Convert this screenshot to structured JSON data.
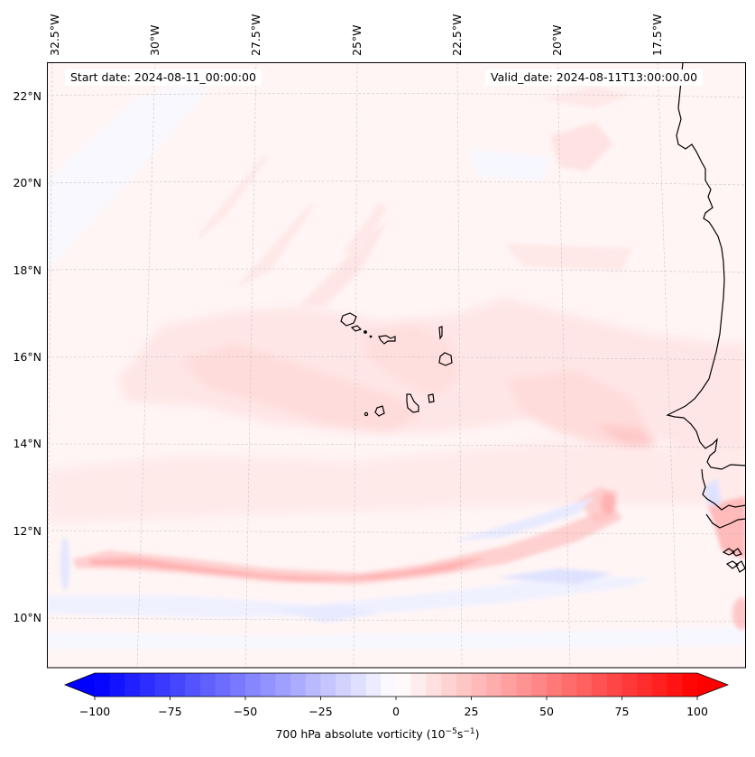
{
  "figure": {
    "type": "filled-contour map",
    "projection_note": "Lambert-style conic; graticule curved"
  },
  "annotations": {
    "start_date": "Start date: 2024-08-11_00:00:00",
    "valid_date": "Valid_date: 2024-08-11T13:00:00.00"
  },
  "axes": {
    "longitude_labels": [
      "32.5°W",
      "30°W",
      "27.5°W",
      "25°W",
      "22.5°W",
      "20°W",
      "17.5°W"
    ],
    "latitude_labels": [
      "22°N",
      "20°N",
      "18°N",
      "16°N",
      "14°N",
      "12°N",
      "10°N"
    ],
    "extent": {
      "lon_min": -33.0,
      "lon_max": -15.5,
      "lat_min": 8.9,
      "lat_max": 22.7
    }
  },
  "colorbar": {
    "label_main": "700 hPa absolute vorticity (10",
    "label_exp1": "−5",
    "label_mid": "s",
    "label_exp2": "−1",
    "label_end": ")",
    "min": -100,
    "max": 100,
    "step": 5,
    "extend": "both",
    "colormap": "bwr",
    "ticks": [
      "−100",
      "−75",
      "−50",
      "−25",
      "0",
      "25",
      "50",
      "75",
      "100"
    ],
    "tick_values": [
      -100,
      -75,
      -50,
      -25,
      0,
      25,
      50,
      75,
      100
    ],
    "low_color": "#0000ff",
    "mid_color": "#ffffff",
    "high_color": "#ff0000"
  },
  "chart_data": {
    "type": "heatmap",
    "title": "",
    "variable": "700 hPa absolute vorticity",
    "units": "10^-5 s^-1",
    "x_ticks": [
      "32.5°W",
      "30°W",
      "27.5°W",
      "25°W",
      "22.5°W",
      "20°W",
      "17.5°W"
    ],
    "y_ticks": [
      "22°N",
      "20°N",
      "18°N",
      "16°N",
      "14°N",
      "12°N",
      "10°N"
    ],
    "value_range": [
      -100,
      100
    ],
    "features": [
      {
        "name": "background",
        "value_approx": 3
      },
      {
        "name": "broad-band-cape-verde",
        "lat": 15.5,
        "value_approx": 10
      },
      {
        "name": "zonal-vorticity-band",
        "lat_range": [
          10.8,
          11.6
        ],
        "lon_range": [
          -32.5,
          -21.0
        ],
        "value_approx": 30
      },
      {
        "name": "max-vortex-west-africa",
        "lat": 12.6,
        "lon": -20.7,
        "value_approx": 45
      },
      {
        "name": "negative-strip-south",
        "lat": 10.3,
        "value_approx": -10
      },
      {
        "name": "coastal-max-guinea",
        "lat": 11.5,
        "lon": -16.0,
        "value_approx": 35
      }
    ],
    "grid": true
  }
}
